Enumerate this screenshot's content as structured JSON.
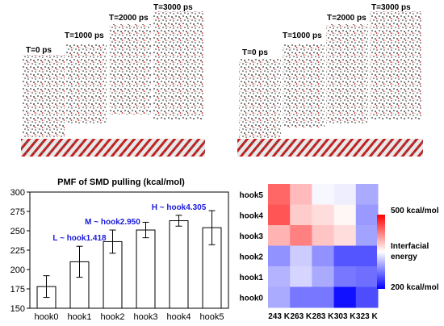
{
  "snapshots": {
    "left": {
      "labels": [
        "T=0 ps",
        "T=1000 ps",
        "T=2000 ps",
        "T=3000 ps"
      ]
    },
    "right": {
      "labels": [
        "T=0 ps",
        "T=1000 ps",
        "T=2000 ps",
        "T=3000 ps"
      ]
    }
  },
  "colors": {
    "annotation": "#1a1adb",
    "bar_fill": "#ffffff",
    "bar_stroke": "#000000",
    "heat_high": "#ff0000",
    "heat_mid": "#ffffff",
    "heat_low": "#0000ff",
    "slab_red": "#c41e1e"
  },
  "chart_data": [
    {
      "type": "bar",
      "title": "PMF of SMD pulling (kcal/mol)",
      "categories": [
        "hook0",
        "hook1",
        "hook2",
        "hook3",
        "hook4",
        "hook5"
      ],
      "series": [
        {
          "values": [
            178,
            210,
            236,
            251,
            263,
            254
          ],
          "error": [
            14,
            20,
            15,
            10,
            7,
            22
          ]
        }
      ],
      "ylim": [
        150,
        300
      ],
      "yticks": [
        150,
        175,
        200,
        225,
        250,
        275,
        300
      ],
      "annotations": [
        {
          "text": "L ~ hook1.418",
          "category": "hook1"
        },
        {
          "text": "M ~ hook2.950",
          "category": "hook2"
        },
        {
          "text": "H ~ hook4.305",
          "category": "hook4"
        }
      ]
    },
    {
      "type": "heatmap",
      "rows": [
        "hook5",
        "hook4",
        "hook3",
        "hook2",
        "hook1",
        "hook0"
      ],
      "cols": [
        "243 K",
        "263 K",
        "283 K",
        "303 K",
        "323 K"
      ],
      "values": [
        [
          440,
          390,
          345,
          340,
          300
        ],
        [
          450,
          380,
          370,
          355,
          290
        ],
        [
          395,
          425,
          385,
          370,
          295
        ],
        [
          285,
          320,
          285,
          250,
          250
        ],
        [
          305,
          325,
          300,
          270,
          265
        ],
        [
          300,
          270,
          270,
          210,
          245
        ]
      ],
      "vmin": 200,
      "vmax": 500,
      "colorbar": {
        "max_label": "500 kcal/mol",
        "min_label": "200 kcal/mol",
        "title_line1": "Interfacial",
        "title_line2": "energy"
      }
    }
  ]
}
